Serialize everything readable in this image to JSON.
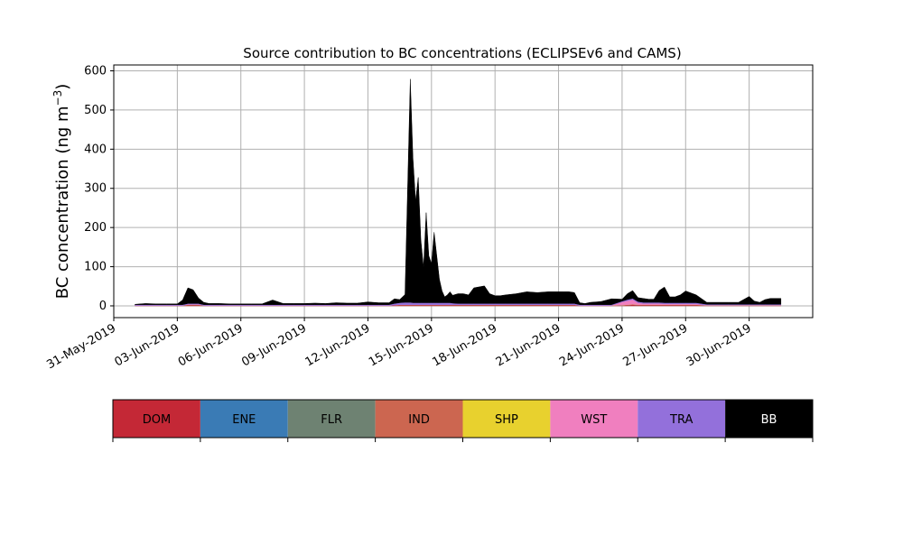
{
  "chart_data": {
    "type": "area",
    "title": "Source contribution to BC concentrations (ECLIPSEv6 and CAMS)",
    "xlabel": "",
    "ylabel": "BC concentration (ng m",
    "ylabel_sup": "−3",
    "ylabel_close": ")",
    "xlim": [
      "2019-05-31",
      "2019-07-03"
    ],
    "ylim": [
      -30,
      615
    ],
    "grid": true,
    "yticks": [
      0,
      100,
      200,
      300,
      400,
      500,
      600
    ],
    "xticks": [
      "31-May-2019",
      "03-Jun-2019",
      "06-Jun-2019",
      "09-Jun-2019",
      "12-Jun-2019",
      "15-Jun-2019",
      "18-Jun-2019",
      "21-Jun-2019",
      "24-Jun-2019",
      "27-Jun-2019",
      "30-Jun-2019"
    ],
    "xtick_dates": [
      "2019-05-31",
      "2019-06-03",
      "2019-06-06",
      "2019-06-09",
      "2019-06-12",
      "2019-06-15",
      "2019-06-18",
      "2019-06-21",
      "2019-06-24",
      "2019-06-27",
      "2019-06-30"
    ],
    "x": [
      "2019-06-01",
      "2019-06-01T12",
      "2019-06-02",
      "2019-06-02T12",
      "2019-06-03",
      "2019-06-03T06",
      "2019-06-03T12",
      "2019-06-03T18",
      "2019-06-04",
      "2019-06-04T06",
      "2019-06-04T12",
      "2019-06-05",
      "2019-06-05T12",
      "2019-06-06",
      "2019-06-06T12",
      "2019-06-07",
      "2019-06-07T12",
      "2019-06-08",
      "2019-06-08T06",
      "2019-06-08T12",
      "2019-06-09",
      "2019-06-09T12",
      "2019-06-10",
      "2019-06-10T12",
      "2019-06-11",
      "2019-06-11T12",
      "2019-06-12",
      "2019-06-12T12",
      "2019-06-13",
      "2019-06-13T06",
      "2019-06-13T12",
      "2019-06-13T18",
      "2019-06-14",
      "2019-06-14T03",
      "2019-06-14T06",
      "2019-06-14T09",
      "2019-06-14T12",
      "2019-06-14T15",
      "2019-06-14T18",
      "2019-06-14T21",
      "2019-06-15",
      "2019-06-15T03",
      "2019-06-15T06",
      "2019-06-15T09",
      "2019-06-15T12",
      "2019-06-15T15",
      "2019-06-15T18",
      "2019-06-15T21",
      "2019-06-16",
      "2019-06-16T06",
      "2019-06-16T12",
      "2019-06-16T18",
      "2019-06-17",
      "2019-06-17T12",
      "2019-06-17T18",
      "2019-06-18",
      "2019-06-18T06",
      "2019-06-18T12",
      "2019-06-19",
      "2019-06-19T12",
      "2019-06-20",
      "2019-06-20T12",
      "2019-06-21",
      "2019-06-21T06",
      "2019-06-21T12",
      "2019-06-21T18",
      "2019-06-22",
      "2019-06-22T06",
      "2019-06-22T12",
      "2019-06-23",
      "2019-06-23T12",
      "2019-06-24",
      "2019-06-24T06",
      "2019-06-24T12",
      "2019-06-24T18",
      "2019-06-25",
      "2019-06-25T06",
      "2019-06-25T12",
      "2019-06-25T18",
      "2019-06-26",
      "2019-06-26T06",
      "2019-06-26T12",
      "2019-06-26T18",
      "2019-06-27",
      "2019-06-27T12",
      "2019-06-28",
      "2019-06-28T12",
      "2019-06-29",
      "2019-06-29T12",
      "2019-06-30",
      "2019-06-30T06",
      "2019-06-30T12",
      "2019-06-30T18",
      "2019-07-01",
      "2019-07-01T12"
    ],
    "series": [
      {
        "name": "DOM",
        "color": "#c42836",
        "values": [
          1,
          1,
          1,
          1,
          1,
          1,
          2,
          2,
          2,
          1,
          1,
          1,
          1,
          1,
          1,
          1,
          1,
          1,
          1,
          1,
          1,
          1,
          1,
          1,
          1,
          1,
          1,
          1,
          1,
          2,
          2,
          2,
          2,
          2,
          2,
          2,
          2,
          2,
          2,
          2,
          2,
          2,
          2,
          2,
          2,
          2,
          2,
          2,
          2,
          2,
          2,
          2,
          2,
          2,
          2,
          2,
          2,
          2,
          2,
          2,
          2,
          2,
          2,
          2,
          2,
          2,
          1,
          1,
          1,
          1,
          1,
          1,
          2,
          3,
          2,
          2,
          2,
          2,
          2,
          2,
          2,
          2,
          2,
          2,
          2,
          1,
          1,
          1,
          1,
          1,
          1,
          1,
          1,
          1,
          1
        ]
      },
      {
        "name": "ENE",
        "color": "#3a7bb5",
        "values": [
          0,
          0,
          0,
          0,
          0,
          0,
          0,
          0,
          0,
          0,
          0,
          0,
          0,
          0,
          0,
          0,
          0,
          0,
          0,
          0,
          0,
          0,
          0,
          0,
          0,
          0,
          0,
          0,
          0,
          0,
          0,
          0,
          0,
          0,
          0,
          0,
          0,
          0,
          0,
          0,
          0,
          0,
          0,
          0,
          0,
          0,
          0,
          0,
          0,
          0,
          0,
          0,
          0,
          0,
          0,
          0,
          0,
          0,
          0,
          0,
          0,
          0,
          0,
          0,
          0,
          0,
          0,
          0,
          0,
          0,
          0,
          0,
          0,
          0,
          0,
          0,
          0,
          0,
          0,
          0,
          0,
          0,
          0,
          0,
          0,
          0,
          0,
          0,
          0,
          0,
          0,
          0,
          0,
          0,
          0
        ]
      },
      {
        "name": "FLR",
        "color": "#6e8272",
        "values": [
          0,
          0,
          0,
          0,
          0,
          0,
          0,
          0,
          0,
          0,
          0,
          0,
          0,
          0,
          0,
          0,
          0,
          0,
          0,
          0,
          0,
          0,
          0,
          0,
          0,
          0,
          0,
          0,
          0,
          0,
          0,
          0,
          0,
          0,
          0,
          0,
          0,
          0,
          0,
          0,
          0,
          0,
          0,
          0,
          0,
          0,
          0,
          0,
          0,
          0,
          0,
          0,
          0,
          0,
          0,
          0,
          0,
          0,
          0,
          0,
          0,
          0,
          0,
          0,
          0,
          0,
          0,
          0,
          0,
          0,
          0,
          0,
          0,
          0,
          0,
          0,
          0,
          0,
          0,
          0,
          0,
          0,
          0,
          0,
          0,
          0,
          0,
          0,
          0,
          0,
          0,
          0,
          0,
          0,
          0
        ]
      },
      {
        "name": "IND",
        "color": "#cc6650",
        "values": [
          0,
          0,
          0,
          0,
          0,
          0,
          1,
          1,
          1,
          0,
          0,
          0,
          0,
          0,
          0,
          0,
          0,
          0,
          0,
          0,
          0,
          0,
          0,
          0,
          0,
          0,
          0,
          0,
          0,
          0,
          1,
          1,
          1,
          1,
          1,
          1,
          1,
          1,
          1,
          1,
          1,
          1,
          1,
          1,
          1,
          1,
          1,
          1,
          1,
          1,
          1,
          1,
          1,
          1,
          1,
          1,
          1,
          1,
          1,
          1,
          1,
          1,
          1,
          1,
          1,
          1,
          0,
          0,
          0,
          0,
          0,
          1,
          1,
          1,
          1,
          1,
          1,
          1,
          1,
          1,
          1,
          1,
          1,
          1,
          1,
          0,
          0,
          0,
          0,
          0,
          0,
          0,
          0,
          0,
          0
        ]
      },
      {
        "name": "SHP",
        "color": "#e8d12e",
        "values": [
          0,
          0,
          0,
          0,
          0,
          0,
          0,
          0,
          0,
          0,
          0,
          0,
          0,
          0,
          0,
          0,
          0,
          0,
          0,
          0,
          0,
          0,
          0,
          0,
          0,
          0,
          0,
          0,
          0,
          0,
          0,
          0,
          0,
          0,
          0,
          0,
          0,
          0,
          0,
          0,
          0,
          0,
          0,
          0,
          0,
          0,
          0,
          0,
          0,
          0,
          0,
          0,
          0,
          0,
          0,
          0,
          0,
          0,
          0,
          0,
          0,
          0,
          0,
          0,
          0,
          0,
          0,
          0,
          0,
          0,
          0,
          0,
          0,
          0,
          0,
          0,
          0,
          0,
          0,
          0,
          0,
          0,
          0,
          0,
          0,
          0,
          0,
          0,
          0,
          0,
          0,
          0,
          0,
          0,
          0
        ]
      },
      {
        "name": "WST",
        "color": "#f07fbf",
        "values": [
          0,
          0,
          0,
          0,
          0,
          0,
          1,
          1,
          1,
          0,
          0,
          0,
          0,
          0,
          0,
          0,
          0,
          0,
          0,
          0,
          0,
          0,
          0,
          0,
          0,
          0,
          0,
          0,
          0,
          0,
          0,
          0,
          0,
          0,
          0,
          0,
          0,
          0,
          0,
          0,
          0,
          0,
          0,
          0,
          0,
          0,
          0,
          0,
          0,
          0,
          0,
          0,
          0,
          0,
          0,
          0,
          0,
          0,
          0,
          0,
          0,
          0,
          0,
          0,
          0,
          0,
          0,
          0,
          0,
          0,
          0,
          8,
          10,
          12,
          5,
          3,
          3,
          3,
          3,
          2,
          2,
          2,
          2,
          2,
          2,
          1,
          1,
          1,
          1,
          1,
          1,
          1,
          1,
          1,
          1
        ]
      },
      {
        "name": "TRA",
        "color": "#9370db",
        "values": [
          2,
          2,
          2,
          2,
          2,
          2,
          2,
          2,
          2,
          2,
          2,
          2,
          2,
          2,
          2,
          2,
          2,
          2,
          2,
          2,
          2,
          2,
          2,
          2,
          2,
          2,
          2,
          2,
          2,
          4,
          5,
          6,
          6,
          5,
          5,
          5,
          5,
          5,
          5,
          5,
          5,
          5,
          5,
          5,
          5,
          5,
          5,
          5,
          4,
          3,
          3,
          3,
          3,
          3,
          3,
          3,
          3,
          3,
          3,
          3,
          3,
          3,
          3,
          3,
          3,
          3,
          2,
          2,
          2,
          2,
          2,
          2,
          3,
          3,
          3,
          3,
          3,
          3,
          3,
          3,
          3,
          3,
          3,
          3,
          3,
          2,
          2,
          2,
          2,
          2,
          2,
          2,
          2,
          2,
          2
        ]
      },
      {
        "name": "BB",
        "color": "#000000",
        "values": [
          1,
          3,
          2,
          2,
          2,
          12,
          40,
          35,
          14,
          6,
          3,
          3,
          2,
          2,
          2,
          2,
          12,
          3,
          3,
          3,
          3,
          4,
          3,
          5,
          4,
          4,
          7,
          5,
          5,
          12,
          8,
          20,
          570,
          370,
          260,
          320,
          160,
          90,
          230,
          120,
          100,
          180,
          120,
          60,
          30,
          15,
          20,
          28,
          20,
          25,
          25,
          22,
          40,
          45,
          25,
          20,
          20,
          22,
          25,
          30,
          28,
          30,
          30,
          30,
          30,
          28,
          5,
          3,
          6,
          8,
          15,
          5,
          15,
          20,
          10,
          10,
          8,
          8,
          30,
          40,
          15,
          15,
          20,
          30,
          20,
          5,
          5,
          5,
          5,
          20,
          8,
          5,
          12,
          15,
          15
        ]
      }
    ]
  }
}
